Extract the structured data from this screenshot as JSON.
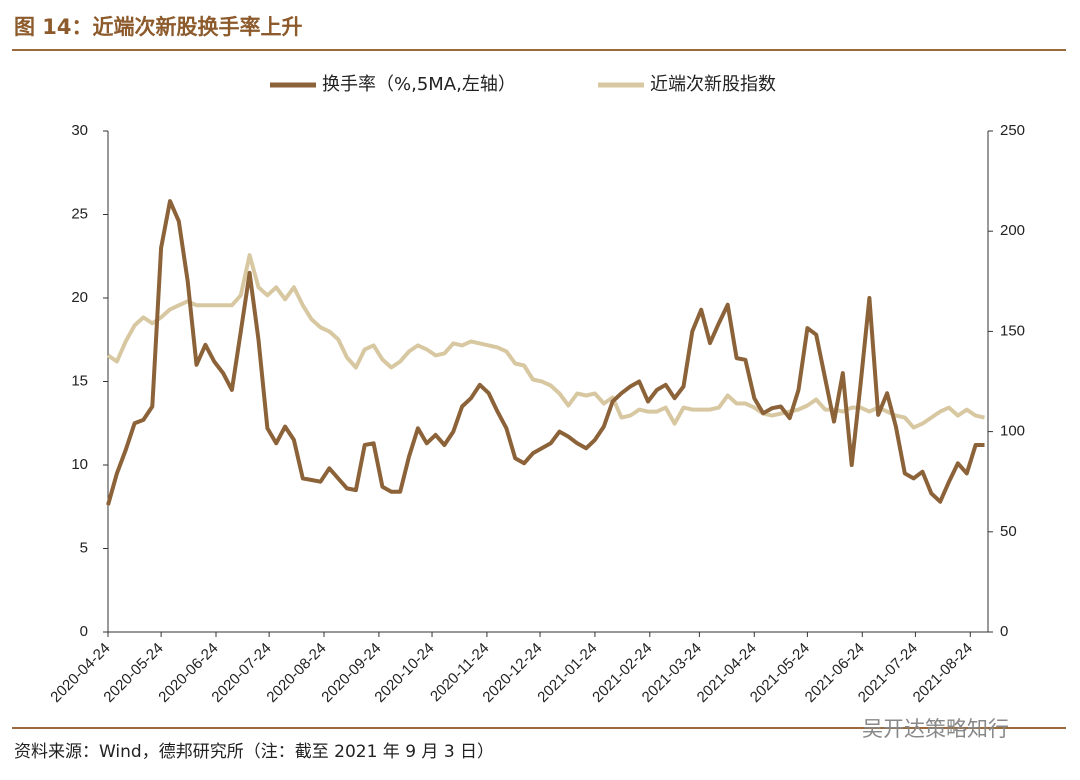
{
  "chart_data": {
    "type": "line",
    "title": "图 14：近端次新股换手率上升",
    "source": "资料来源：Wind，德邦研究所（注：截至 2021 年 9 月 3 日）",
    "watermark": "吴开达策略知行",
    "x": [
      "2020-04-24",
      "2020-04-29",
      "2020-05-04",
      "2020-05-09",
      "2020-05-14",
      "2020-05-19",
      "2020-05-24",
      "2020-05-29",
      "2020-06-03",
      "2020-06-08",
      "2020-06-13",
      "2020-06-18",
      "2020-06-23",
      "2020-06-28",
      "2020-07-03",
      "2020-07-08",
      "2020-07-13",
      "2020-07-18",
      "2020-07-23",
      "2020-07-28",
      "2020-08-02",
      "2020-08-07",
      "2020-08-12",
      "2020-08-17",
      "2020-08-22",
      "2020-08-27",
      "2020-09-01",
      "2020-09-06",
      "2020-09-11",
      "2020-09-16",
      "2020-09-21",
      "2020-09-26",
      "2020-10-01",
      "2020-10-06",
      "2020-10-11",
      "2020-10-16",
      "2020-10-21",
      "2020-10-26",
      "2020-10-31",
      "2020-11-05",
      "2020-11-10",
      "2020-11-15",
      "2020-11-20",
      "2020-11-25",
      "2020-11-30",
      "2020-12-05",
      "2020-12-10",
      "2020-12-15",
      "2020-12-20",
      "2020-12-25",
      "2020-12-30",
      "2021-01-04",
      "2021-01-09",
      "2021-01-14",
      "2021-01-19",
      "2021-01-24",
      "2021-01-29",
      "2021-02-03",
      "2021-02-08",
      "2021-02-13",
      "2021-02-18",
      "2021-02-23",
      "2021-02-28",
      "2021-03-05",
      "2021-03-10",
      "2021-03-15",
      "2021-03-20",
      "2021-03-25",
      "2021-03-30",
      "2021-04-04",
      "2021-04-09",
      "2021-04-14",
      "2021-04-19",
      "2021-04-24",
      "2021-04-29",
      "2021-05-04",
      "2021-05-09",
      "2021-05-14",
      "2021-05-19",
      "2021-05-24",
      "2021-05-29",
      "2021-06-03",
      "2021-06-08",
      "2021-06-13",
      "2021-06-18",
      "2021-06-23",
      "2021-06-28",
      "2021-07-03",
      "2021-07-08",
      "2021-07-13",
      "2021-07-18",
      "2021-07-23",
      "2021-07-28",
      "2021-08-02",
      "2021-08-07",
      "2021-08-12",
      "2021-08-17",
      "2021-08-22",
      "2021-08-27",
      "2021-09-01"
    ],
    "series": [
      {
        "name": "换手率（%,5MA,左轴）",
        "color": "#8c6239",
        "values": [
          7.6,
          9.5,
          10.9,
          12.5,
          12.7,
          13.5,
          23,
          25.8,
          24.6,
          21,
          16,
          17.2,
          16.2,
          15.5,
          14.5,
          18,
          21.5,
          17.5,
          12.2,
          11.3,
          12.3,
          11.5,
          9.2,
          9.1,
          9,
          9.8,
          9.2,
          8.6,
          8.5,
          11.2,
          11.3,
          8.7,
          8.4,
          8.4,
          10.5,
          12.2,
          11.3,
          11.8,
          11.2,
          12,
          13.5,
          14,
          14.8,
          14.3,
          13.2,
          12.2,
          10.4,
          10.1,
          10.7,
          11,
          11.3,
          12,
          11.7,
          11.3,
          11,
          11.5,
          12.3,
          13.8,
          14.3,
          14.7,
          15,
          13.8,
          14.5,
          14.8,
          14,
          14.7,
          18,
          19.3,
          17.3,
          18.5,
          19.6,
          16.4,
          16.3,
          14,
          13.1,
          13.4,
          13.5,
          12.8,
          14.5,
          18.2,
          17.8,
          15.2,
          12.6,
          15.5,
          10,
          14.8,
          20,
          13,
          14.3,
          12.3,
          9.5,
          9.2,
          9.6,
          8.3,
          7.8,
          9,
          10.1,
          9.5,
          11.2,
          11.2
        ]
      },
      {
        "name": "近端次新股指数",
        "color": "#d8c8a2",
        "axis": "y2",
        "values": [
          138,
          135,
          145,
          153,
          157,
          154,
          157,
          161,
          163,
          165,
          163,
          163,
          163,
          163,
          163,
          168,
          188,
          172,
          168,
          172,
          166,
          172,
          163,
          156,
          152,
          150,
          146,
          137,
          132,
          141,
          143,
          136,
          132,
          135,
          140,
          143,
          141,
          138,
          139,
          144,
          143,
          145,
          144,
          143,
          142,
          140,
          134,
          133,
          126,
          125,
          123,
          119,
          113,
          119,
          118,
          119,
          114,
          117,
          107,
          108,
          111,
          110,
          110,
          112,
          104,
          112,
          111,
          111,
          111,
          112,
          118,
          114,
          114,
          112,
          109,
          108,
          109,
          110,
          111,
          113,
          116,
          111,
          111,
          110,
          112,
          112,
          110,
          112,
          110,
          108,
          107,
          102,
          104,
          107,
          110,
          112,
          108,
          111,
          108,
          107
        ]
      }
    ],
    "xlim": [
      "2020-04-24",
      "2021-09-03"
    ],
    "xticks": [
      "2020-04-24",
      "2020-05-24",
      "2020-06-24",
      "2020-07-24",
      "2020-08-24",
      "2020-09-24",
      "2020-10-24",
      "2020-11-24",
      "2020-12-24",
      "2021-01-24",
      "2021-02-24",
      "2021-03-24",
      "2021-04-24",
      "2021-05-24",
      "2021-06-24",
      "2021-07-24",
      "2021-08-24"
    ],
    "ylim": [
      0,
      30
    ],
    "yticks": [
      0,
      5,
      10,
      15,
      20,
      25,
      30
    ],
    "y2lim": [
      0,
      250
    ],
    "y2ticks": [
      0,
      50,
      100,
      150,
      200,
      250
    ],
    "legend": "top"
  }
}
